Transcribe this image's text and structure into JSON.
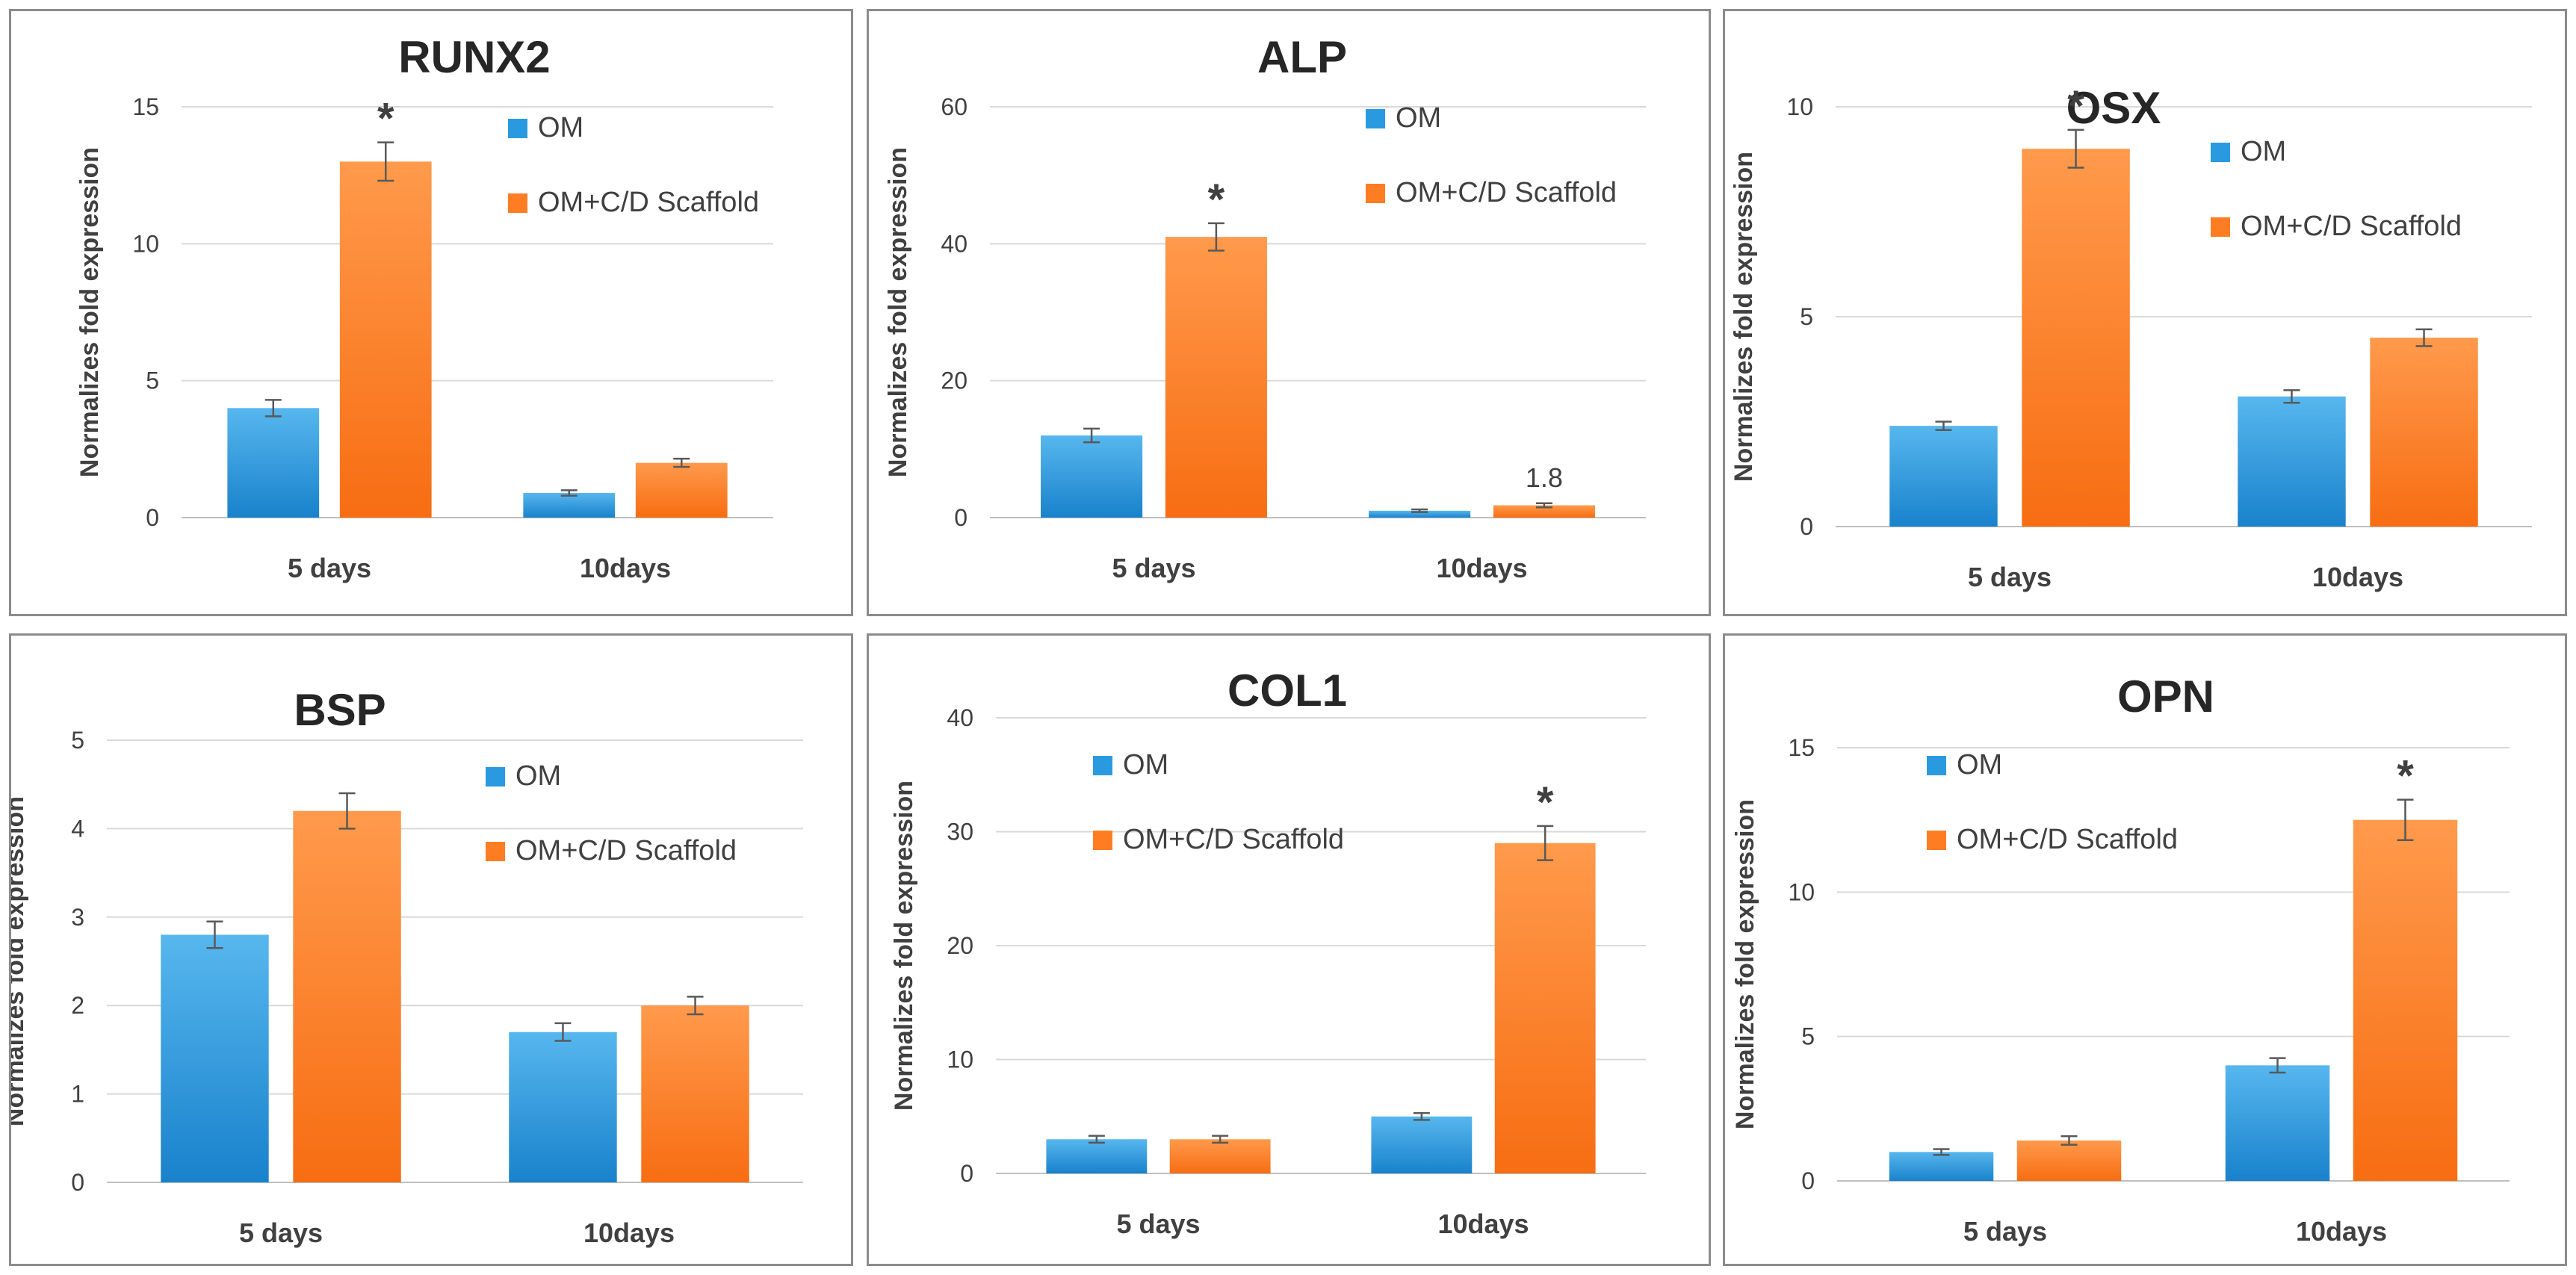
{
  "figure": {
    "colors": {
      "om": "#2a9ae0",
      "om_light": "#57b7ee",
      "om_dark": "#1982cc",
      "scaffold": "#ff7d22",
      "scaffold_light": "#ff9a4c",
      "scaffold_dark": "#f76d12",
      "grid": "#d9d9d9",
      "text": "#404040",
      "title": "#262626",
      "border": "#8c8c8c"
    }
  },
  "chart_data": [
    {
      "type": "bar",
      "title": "RUNX2",
      "ylabel": "Normalizes fold expression",
      "xlabel": "",
      "categories": [
        "5 days",
        "10days"
      ],
      "ylim": [
        0,
        15
      ],
      "yticks": [
        0,
        5,
        10,
        15
      ],
      "grid": true,
      "legend": "top-right",
      "series": [
        {
          "name": "OM",
          "color": "#2a9ae0",
          "values": [
            4.0,
            0.9
          ],
          "errors": [
            0.3,
            0.1
          ]
        },
        {
          "name": "OM+C/D Scaffold",
          "color": "#ff7d22",
          "values": [
            13.0,
            2.0
          ],
          "errors": [
            0.7,
            0.15
          ]
        }
      ],
      "annotations": [
        {
          "text": "*",
          "series": 1,
          "category": 0
        }
      ]
    },
    {
      "type": "bar",
      "title": "ALP",
      "ylabel": "Normalizes fold expression",
      "xlabel": "",
      "categories": [
        "5 days",
        "10days"
      ],
      "ylim": [
        0,
        60
      ],
      "yticks": [
        0,
        20,
        40,
        60
      ],
      "grid": true,
      "legend": "top-right",
      "series": [
        {
          "name": "OM",
          "color": "#2a9ae0",
          "values": [
            12.0,
            1.0
          ],
          "errors": [
            1.0,
            0.2
          ]
        },
        {
          "name": "OM+C/D Scaffold",
          "color": "#ff7d22",
          "values": [
            41.0,
            1.8
          ],
          "errors": [
            2.0,
            0.3
          ]
        }
      ],
      "annotations": [
        {
          "text": "*",
          "series": 1,
          "category": 0
        },
        {
          "text": "1.8",
          "series": 1,
          "category": 1
        }
      ]
    },
    {
      "type": "bar",
      "title": "OSX",
      "ylabel": "Normalizes fold expression",
      "xlabel": "",
      "categories": [
        "5 days",
        "10days"
      ],
      "ylim": [
        0,
        10
      ],
      "yticks": [
        0,
        5,
        10
      ],
      "grid": true,
      "legend": "top-right",
      "series": [
        {
          "name": "OM",
          "color": "#2a9ae0",
          "values": [
            2.4,
            3.1
          ],
          "errors": [
            0.1,
            0.15
          ]
        },
        {
          "name": "OM+C/D Scaffold",
          "color": "#ff7d22",
          "values": [
            9.0,
            4.5
          ],
          "errors": [
            0.45,
            0.2
          ]
        }
      ],
      "annotations": [
        {
          "text": "*",
          "series": 1,
          "category": 0
        }
      ]
    },
    {
      "type": "bar",
      "title": "BSP",
      "ylabel": "Normalizes fold expression",
      "xlabel": "",
      "categories": [
        "5 days",
        "10days"
      ],
      "ylim": [
        0,
        5
      ],
      "yticks": [
        0,
        1,
        2,
        3,
        4,
        5
      ],
      "grid": true,
      "legend": "top-right",
      "series": [
        {
          "name": "OM",
          "color": "#2a9ae0",
          "values": [
            2.8,
            1.7
          ],
          "errors": [
            0.15,
            0.1
          ]
        },
        {
          "name": "OM+C/D Scaffold",
          "color": "#ff7d22",
          "values": [
            4.2,
            2.0
          ],
          "errors": [
            0.2,
            0.1
          ]
        }
      ],
      "annotations": []
    },
    {
      "type": "bar",
      "title": "COL1",
      "ylabel": "Normalizes fold expression",
      "xlabel": "",
      "categories": [
        "5 days",
        "10days"
      ],
      "ylim": [
        0,
        40
      ],
      "yticks": [
        0,
        10,
        20,
        30,
        40
      ],
      "grid": true,
      "legend": "top-left",
      "series": [
        {
          "name": "OM",
          "color": "#2a9ae0",
          "values": [
            3.0,
            5.0
          ],
          "errors": [
            0.3,
            0.3
          ]
        },
        {
          "name": "OM+C/D Scaffold",
          "color": "#ff7d22",
          "values": [
            3.0,
            29.0
          ],
          "errors": [
            0.3,
            1.5
          ]
        }
      ],
      "annotations": [
        {
          "text": "*",
          "series": 1,
          "category": 1
        }
      ]
    },
    {
      "type": "bar",
      "title": "OPN",
      "ylabel": "Normalizes fold expression",
      "xlabel": "",
      "categories": [
        "5 days",
        "10days"
      ],
      "ylim": [
        0,
        15
      ],
      "yticks": [
        0,
        5,
        10,
        15
      ],
      "grid": true,
      "legend": "top-left",
      "series": [
        {
          "name": "OM",
          "color": "#2a9ae0",
          "values": [
            1.0,
            4.0
          ],
          "errors": [
            0.1,
            0.25
          ]
        },
        {
          "name": "OM+C/D Scaffold",
          "color": "#ff7d22",
          "values": [
            1.4,
            12.5
          ],
          "errors": [
            0.15,
            0.7
          ]
        }
      ],
      "annotations": [
        {
          "text": "*",
          "series": 1,
          "category": 1
        }
      ]
    }
  ]
}
